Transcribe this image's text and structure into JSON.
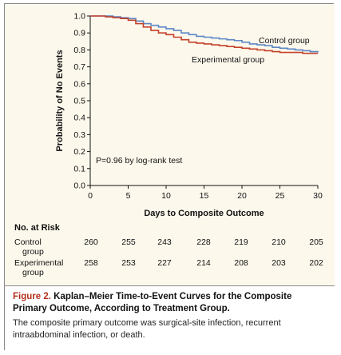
{
  "chart_data": {
    "type": "line",
    "xlabel": "Days to Composite Outcome",
    "ylabel": "Probability of No Events",
    "xlim": [
      0,
      30
    ],
    "ylim": [
      0.0,
      1.0
    ],
    "x_ticks": [
      "0",
      "5",
      "10",
      "15",
      "20",
      "25",
      "30"
    ],
    "y_ticks": [
      "0.0",
      "0.1",
      "0.2",
      "0.3",
      "0.4",
      "0.5",
      "0.6",
      "0.7",
      "0.8",
      "0.9",
      "1.0"
    ],
    "annotation": "P=0.96 by log-rank test",
    "series": [
      {
        "name": "Control group",
        "color": "#5b87c6",
        "points": [
          [
            0,
            1.0
          ],
          [
            2,
            1.0
          ],
          [
            3,
            0.995
          ],
          [
            4,
            0.99
          ],
          [
            5,
            0.985
          ],
          [
            6,
            0.97
          ],
          [
            7,
            0.955
          ],
          [
            8,
            0.945
          ],
          [
            9,
            0.935
          ],
          [
            10,
            0.925
          ],
          [
            11,
            0.915
          ],
          [
            12,
            0.9
          ],
          [
            13,
            0.89
          ],
          [
            14,
            0.88
          ],
          [
            15,
            0.875
          ],
          [
            16,
            0.87
          ],
          [
            17,
            0.865
          ],
          [
            18,
            0.86
          ],
          [
            19,
            0.855
          ],
          [
            20,
            0.845
          ],
          [
            21,
            0.835
          ],
          [
            22,
            0.83
          ],
          [
            23,
            0.825
          ],
          [
            24,
            0.815
          ],
          [
            25,
            0.81
          ],
          [
            26,
            0.805
          ],
          [
            27,
            0.8
          ],
          [
            28,
            0.795
          ],
          [
            29,
            0.79
          ],
          [
            30,
            0.785
          ]
        ]
      },
      {
        "name": "Experimental group",
        "color": "#c4412a",
        "points": [
          [
            0,
            1.0
          ],
          [
            2,
            0.995
          ],
          [
            3,
            0.99
          ],
          [
            4,
            0.985
          ],
          [
            5,
            0.975
          ],
          [
            6,
            0.955
          ],
          [
            7,
            0.935
          ],
          [
            8,
            0.915
          ],
          [
            9,
            0.9
          ],
          [
            10,
            0.89
          ],
          [
            11,
            0.875
          ],
          [
            12,
            0.86
          ],
          [
            13,
            0.845
          ],
          [
            14,
            0.84
          ],
          [
            15,
            0.835
          ],
          [
            16,
            0.83
          ],
          [
            17,
            0.825
          ],
          [
            18,
            0.82
          ],
          [
            19,
            0.815
          ],
          [
            20,
            0.81
          ],
          [
            21,
            0.805
          ],
          [
            22,
            0.8
          ],
          [
            23,
            0.795
          ],
          [
            24,
            0.79
          ],
          [
            25,
            0.785
          ],
          [
            26,
            0.785
          ],
          [
            27,
            0.785
          ],
          [
            28,
            0.78
          ],
          [
            29,
            0.78
          ],
          [
            30,
            0.78
          ]
        ]
      }
    ]
  },
  "risk_table": {
    "title": "No. at Risk",
    "columns": [
      "0",
      "5",
      "10",
      "15",
      "20",
      "25",
      "30"
    ],
    "rows": [
      {
        "label": "Control group",
        "values": [
          "260",
          "255",
          "243",
          "228",
          "219",
          "210",
          "205"
        ]
      },
      {
        "label": "Experimental group",
        "values": [
          "258",
          "253",
          "227",
          "214",
          "208",
          "203",
          "202"
        ]
      }
    ]
  },
  "caption": {
    "figure_label": "Figure 2.",
    "title": "Kaplan–Meier Time-to-Event Curves for the Composite Primary Outcome, According to Treatment Group.",
    "body": "The composite primary outcome was surgical-site infection, recurrent intraabdominal infection, or death."
  }
}
